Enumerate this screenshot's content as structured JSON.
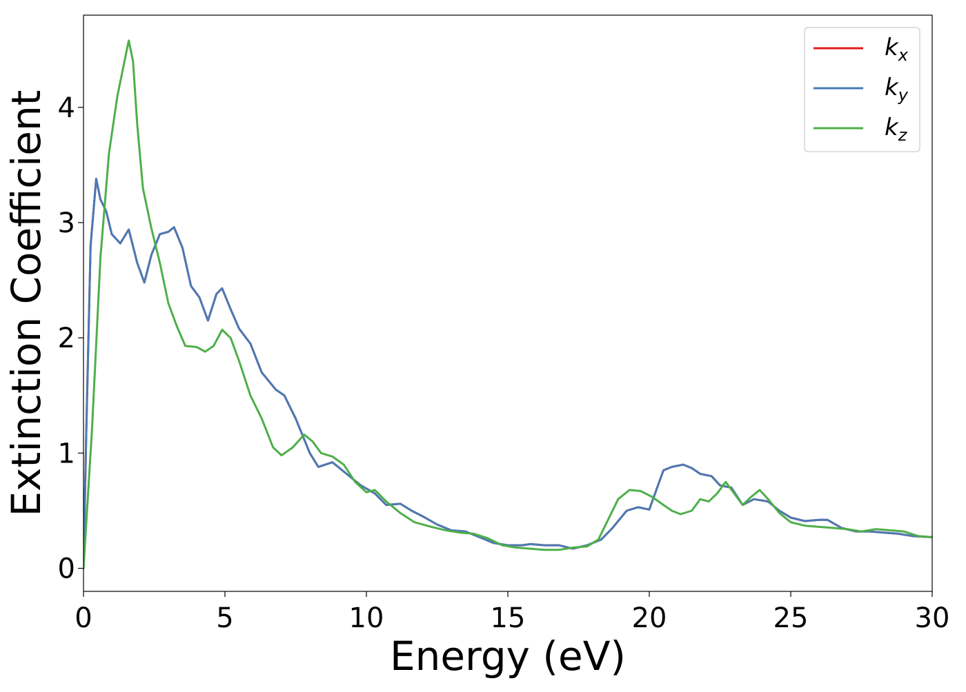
{
  "chart_data": {
    "type": "line",
    "title": "",
    "xlabel": "Energy (eV)",
    "ylabel": "Extinction Coefficient",
    "xlim": [
      0,
      30
    ],
    "ylim": [
      -0.2,
      4.8
    ],
    "xticks": [
      0,
      5,
      10,
      15,
      20,
      25,
      30
    ],
    "xtick_labels": [
      "0",
      "5",
      "10",
      "15",
      "20",
      "25",
      "30"
    ],
    "yticks": [
      0,
      1,
      2,
      3,
      4
    ],
    "ytick_labels": [
      "0",
      "1",
      "2",
      "3",
      "4"
    ],
    "grid": false,
    "legend": {
      "position": "top-right",
      "entries": [
        {
          "base": "k",
          "sub": "x",
          "color": "#e41a1c"
        },
        {
          "base": "k",
          "sub": "y",
          "color": "#4a7ab5"
        },
        {
          "base": "k",
          "sub": "z",
          "color": "#4daf4a"
        }
      ]
    },
    "series": [
      {
        "name": "kx",
        "color": "#e41a1c",
        "x": [
          0,
          0.1,
          0.25,
          0.45,
          0.6,
          0.8,
          1.0,
          1.3,
          1.6,
          1.9,
          2.15,
          2.4,
          2.7,
          3.0,
          3.2,
          3.5,
          3.8,
          4.1,
          4.4,
          4.7,
          4.9,
          5.2,
          5.5,
          5.9,
          6.3,
          6.8,
          7.1,
          7.5,
          8.0,
          8.3,
          8.8,
          9.3,
          9.8,
          10.3,
          10.7,
          11.2,
          11.6,
          12.0,
          12.5,
          13.0,
          13.5,
          14.0,
          14.5,
          15.0,
          15.5,
          15.8,
          16.3,
          16.8,
          17.3,
          17.8,
          18.3,
          18.7,
          19.2,
          19.6,
          20.0,
          20.5,
          20.8,
          21.2,
          21.5,
          21.8,
          22.2,
          22.5,
          22.9,
          23.3,
          23.7,
          24.2,
          24.6,
          25.0,
          25.5,
          26.0,
          26.3,
          26.8,
          27.3,
          27.8,
          28.3,
          28.8,
          29.3,
          30.0
        ],
        "y": [
          0,
          1.2,
          2.8,
          3.38,
          3.2,
          3.1,
          2.9,
          2.82,
          2.94,
          2.65,
          2.48,
          2.72,
          2.9,
          2.92,
          2.96,
          2.78,
          2.45,
          2.35,
          2.15,
          2.38,
          2.43,
          2.25,
          2.08,
          1.95,
          1.7,
          1.55,
          1.5,
          1.3,
          1.0,
          0.88,
          0.92,
          0.82,
          0.72,
          0.65,
          0.55,
          0.56,
          0.5,
          0.45,
          0.38,
          0.33,
          0.32,
          0.27,
          0.22,
          0.2,
          0.2,
          0.21,
          0.2,
          0.2,
          0.17,
          0.2,
          0.25,
          0.35,
          0.5,
          0.53,
          0.51,
          0.85,
          0.88,
          0.9,
          0.87,
          0.82,
          0.8,
          0.72,
          0.7,
          0.55,
          0.6,
          0.58,
          0.5,
          0.44,
          0.41,
          0.42,
          0.42,
          0.35,
          0.32,
          0.32,
          0.31,
          0.3,
          0.28,
          0.27
        ]
      },
      {
        "name": "ky",
        "color": "#4a7ab5",
        "x": [
          0,
          0.1,
          0.25,
          0.45,
          0.6,
          0.8,
          1.0,
          1.3,
          1.6,
          1.9,
          2.15,
          2.4,
          2.7,
          3.0,
          3.2,
          3.5,
          3.8,
          4.1,
          4.4,
          4.7,
          4.9,
          5.2,
          5.5,
          5.9,
          6.3,
          6.8,
          7.1,
          7.5,
          8.0,
          8.3,
          8.8,
          9.3,
          9.8,
          10.3,
          10.7,
          11.2,
          11.6,
          12.0,
          12.5,
          13.0,
          13.5,
          14.0,
          14.5,
          15.0,
          15.5,
          15.8,
          16.3,
          16.8,
          17.3,
          17.8,
          18.3,
          18.7,
          19.2,
          19.6,
          20.0,
          20.5,
          20.8,
          21.2,
          21.5,
          21.8,
          22.2,
          22.5,
          22.9,
          23.3,
          23.7,
          24.2,
          24.6,
          25.0,
          25.5,
          26.0,
          26.3,
          26.8,
          27.3,
          27.8,
          28.3,
          28.8,
          29.3,
          30.0
        ],
        "y": [
          0,
          1.2,
          2.8,
          3.38,
          3.2,
          3.1,
          2.9,
          2.82,
          2.94,
          2.65,
          2.48,
          2.72,
          2.9,
          2.92,
          2.96,
          2.78,
          2.45,
          2.35,
          2.15,
          2.38,
          2.43,
          2.25,
          2.08,
          1.95,
          1.7,
          1.55,
          1.5,
          1.3,
          1.0,
          0.88,
          0.92,
          0.82,
          0.72,
          0.65,
          0.55,
          0.56,
          0.5,
          0.45,
          0.38,
          0.33,
          0.32,
          0.27,
          0.22,
          0.2,
          0.2,
          0.21,
          0.2,
          0.2,
          0.17,
          0.2,
          0.25,
          0.35,
          0.5,
          0.53,
          0.51,
          0.85,
          0.88,
          0.9,
          0.87,
          0.82,
          0.8,
          0.72,
          0.7,
          0.55,
          0.6,
          0.58,
          0.5,
          0.44,
          0.41,
          0.42,
          0.42,
          0.35,
          0.32,
          0.32,
          0.31,
          0.3,
          0.28,
          0.27
        ]
      },
      {
        "name": "kz",
        "color": "#4daf4a",
        "x": [
          0,
          0.3,
          0.6,
          0.9,
          1.2,
          1.45,
          1.6,
          1.75,
          1.9,
          2.1,
          2.4,
          2.7,
          3.0,
          3.3,
          3.6,
          4.0,
          4.3,
          4.6,
          4.9,
          5.2,
          5.5,
          5.9,
          6.3,
          6.7,
          7.0,
          7.4,
          7.8,
          8.1,
          8.4,
          8.8,
          9.2,
          9.6,
          10.0,
          10.3,
          10.7,
          11.2,
          11.7,
          12.3,
          12.8,
          13.3,
          13.8,
          14.3,
          14.8,
          15.3,
          15.8,
          16.3,
          16.8,
          17.3,
          17.8,
          18.2,
          18.6,
          18.9,
          19.3,
          19.7,
          20.1,
          20.5,
          20.8,
          21.1,
          21.5,
          21.8,
          22.1,
          22.4,
          22.7,
          23.0,
          23.3,
          23.6,
          23.9,
          24.2,
          24.6,
          25.0,
          25.5,
          26.0,
          26.5,
          27.0,
          27.5,
          28.0,
          28.5,
          29.0,
          29.5,
          30.0
        ],
        "y": [
          0,
          1.2,
          2.7,
          3.6,
          4.1,
          4.4,
          4.58,
          4.4,
          3.85,
          3.3,
          2.95,
          2.65,
          2.3,
          2.1,
          1.93,
          1.92,
          1.88,
          1.93,
          2.07,
          2.0,
          1.8,
          1.5,
          1.3,
          1.05,
          0.98,
          1.05,
          1.16,
          1.1,
          1.0,
          0.97,
          0.9,
          0.75,
          0.66,
          0.68,
          0.58,
          0.48,
          0.4,
          0.36,
          0.33,
          0.31,
          0.3,
          0.26,
          0.2,
          0.18,
          0.17,
          0.16,
          0.16,
          0.18,
          0.19,
          0.25,
          0.45,
          0.6,
          0.68,
          0.67,
          0.62,
          0.55,
          0.5,
          0.47,
          0.5,
          0.6,
          0.58,
          0.65,
          0.75,
          0.65,
          0.55,
          0.62,
          0.68,
          0.6,
          0.48,
          0.4,
          0.37,
          0.36,
          0.35,
          0.34,
          0.32,
          0.34,
          0.33,
          0.32,
          0.28,
          0.27
        ]
      }
    ]
  }
}
